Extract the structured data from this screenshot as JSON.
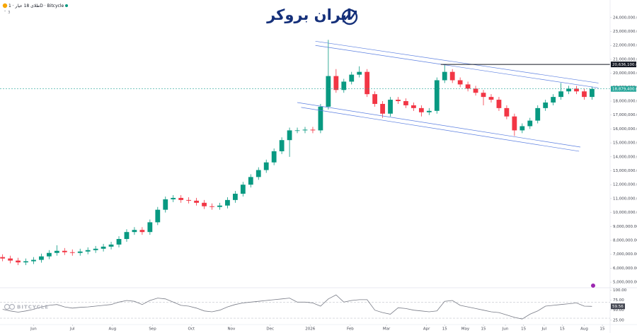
{
  "header": {
    "title": "طلای 18 عیار · 1D · Bitcycle",
    "sub": "3"
  },
  "logo": "ایران بروکر",
  "watermark": "BITCYCLE",
  "chart_data": [
    {
      "type": "candlestick",
      "up_color": "#089981",
      "down_color": "#f23645",
      "x": [
        -24,
        -18,
        -12,
        -6,
        0,
        6,
        12,
        18,
        24,
        30,
        36,
        42,
        48,
        54,
        60,
        66,
        72,
        78,
        84,
        90,
        96,
        102,
        108,
        114,
        120,
        126,
        132,
        138,
        144,
        150,
        156,
        162,
        168,
        174,
        180,
        186,
        192,
        198,
        204,
        210,
        216,
        222,
        228,
        234,
        240,
        246,
        252,
        258,
        264,
        270,
        276,
        282,
        288,
        294,
        300,
        306,
        312,
        318,
        324,
        330,
        336,
        342,
        348,
        354,
        360,
        366,
        372,
        378,
        384,
        390,
        396,
        402,
        408,
        414,
        420,
        426,
        432
      ],
      "open": [
        6800000,
        6700000,
        6550000,
        6420000,
        6500000,
        6600000,
        6850000,
        7100000,
        7250000,
        7150000,
        7100000,
        7200000,
        7300000,
        7400000,
        7550000,
        7700000,
        8100000,
        8600000,
        8750000,
        8600000,
        9300000,
        10200000,
        10950000,
        11050000,
        10900000,
        10850000,
        10700000,
        10450000,
        10400000,
        10500000,
        10900000,
        11350000,
        12000000,
        12550000,
        13050000,
        13600000,
        14400000,
        15200000,
        15900000,
        15900000,
        15950000,
        15900000,
        17600000,
        19800000,
        18800000,
        19400000,
        19900000,
        20100000,
        18500000,
        17800000,
        17100000,
        18100000,
        18000000,
        17700000,
        17500000,
        17200000,
        17300000,
        19500000,
        20100000,
        19500000,
        19200000,
        18900000,
        18600000,
        18300000,
        18100000,
        17500000,
        16900000,
        15900000,
        16200000,
        16600000,
        17500000,
        17900000,
        18300000,
        18700000,
        18900000,
        18700000,
        18300000
      ],
      "high": [
        7000000,
        6900000,
        6750000,
        6700000,
        6800000,
        7050000,
        7300000,
        7650000,
        7450000,
        7350000,
        7400000,
        7500000,
        7600000,
        7750000,
        7900000,
        8300000,
        8800000,
        8950000,
        8950000,
        9500000,
        10400000,
        11150000,
        11250000,
        11250000,
        11100000,
        11050000,
        10900000,
        10650000,
        10700000,
        11100000,
        11550000,
        12200000,
        12750000,
        13250000,
        13800000,
        14600000,
        15400000,
        16100000,
        16100000,
        16150000,
        16150000,
        17800000,
        22400000,
        20300000,
        19600000,
        20100000,
        20500000,
        20300000,
        18700000,
        18000000,
        18300000,
        18300000,
        18200000,
        17900000,
        17700000,
        17500000,
        19700000,
        20636100,
        20300000,
        19700000,
        19400000,
        19100000,
        18800000,
        18500000,
        18300000,
        17700000,
        17100000,
        16400000,
        16800000,
        17700000,
        18100000,
        18500000,
        19300000,
        19100000,
        19100000,
        18900000,
        19050000
      ],
      "low": [
        6500000,
        6350000,
        6220000,
        6220000,
        6300000,
        6400000,
        6650000,
        6900000,
        6950000,
        6900000,
        6900000,
        7000000,
        7100000,
        7200000,
        7350000,
        7500000,
        7900000,
        8400000,
        8400000,
        8400000,
        9100000,
        10000000,
        10750000,
        10700000,
        10650000,
        10500000,
        10250000,
        10200000,
        10200000,
        10300000,
        10700000,
        11150000,
        11800000,
        12350000,
        12850000,
        13400000,
        14200000,
        14000000,
        15700000,
        15700000,
        15700000,
        15700000,
        17400000,
        18600000,
        18600000,
        19200000,
        19700000,
        18300000,
        17600000,
        16800000,
        16900000,
        17800000,
        17500000,
        17300000,
        16900000,
        17000000,
        17100000,
        19300000,
        19300000,
        19000000,
        18700000,
        18400000,
        17700000,
        17900000,
        17300000,
        16700000,
        15500000,
        15700000,
        16000000,
        16400000,
        17300000,
        17700000,
        18100000,
        18500000,
        18500000,
        18100000,
        18100000
      ],
      "close": [
        6700000,
        6550000,
        6420000,
        6500000,
        6600000,
        6850000,
        7100000,
        7250000,
        7150000,
        7100000,
        7200000,
        7300000,
        7400000,
        7550000,
        7700000,
        8100000,
        8600000,
        8750000,
        8600000,
        9300000,
        10200000,
        10950000,
        11050000,
        10900000,
        10850000,
        10700000,
        10450000,
        10400000,
        10500000,
        10900000,
        11350000,
        12000000,
        12550000,
        13050000,
        13600000,
        14400000,
        15200000,
        15900000,
        15900000,
        15950000,
        15900000,
        17600000,
        19800000,
        18800000,
        19400000,
        19900000,
        20100000,
        18500000,
        17800000,
        17100000,
        18100000,
        18000000,
        17700000,
        17500000,
        17200000,
        17300000,
        19500000,
        20100000,
        19500000,
        19200000,
        18900000,
        18600000,
        18300000,
        18100000,
        17500000,
        16900000,
        15900000,
        16200000,
        16600000,
        17500000,
        17900000,
        18300000,
        18700000,
        18900000,
        18700000,
        18300000,
        18879400
      ],
      "xlim": [
        -26,
        446
      ],
      "xticks": [
        {
          "value": 0,
          "label": "Jun"
        },
        {
          "value": 30,
          "label": "Jul"
        },
        {
          "value": 61,
          "label": "Aug"
        },
        {
          "value": 92,
          "label": "Sep"
        },
        {
          "value": 122,
          "label": "Oct"
        },
        {
          "value": 153,
          "label": "Nov"
        },
        {
          "value": 183,
          "label": "Dec"
        },
        {
          "value": 214,
          "label": "2026"
        },
        {
          "value": 245,
          "label": "Feb"
        },
        {
          "value": 273,
          "label": "Mar"
        },
        {
          "value": 304,
          "label": "Apr"
        },
        {
          "value": 318,
          "label": "15"
        },
        {
          "value": 334,
          "label": "May"
        },
        {
          "value": 348,
          "label": "15"
        },
        {
          "value": 365,
          "label": "Jun"
        },
        {
          "value": 379,
          "label": "15"
        },
        {
          "value": 395,
          "label": "Jul"
        },
        {
          "value": 409,
          "label": "15"
        },
        {
          "value": 426,
          "label": "Aug"
        },
        {
          "value": 440,
          "label": "15"
        }
      ],
      "ylim": [
        4700000,
        24500000
      ],
      "yticks": [
        {
          "value": 5000000,
          "label": "5,000,000.00"
        },
        {
          "value": 6000000,
          "label": "6,000,000.00"
        },
        {
          "value": 7000000,
          "label": "7,000,000.00"
        },
        {
          "value": 8000000,
          "label": "8,000,000.00"
        },
        {
          "value": 9000000,
          "label": "9,000,000.00"
        },
        {
          "value": 10000000,
          "label": "10,000,000.00"
        },
        {
          "value": 11000000,
          "label": "11,000,000.00"
        },
        {
          "value": 12000000,
          "label": "12,000,000.00"
        },
        {
          "value": 13000000,
          "label": "13,000,000.00"
        },
        {
          "value": 14000000,
          "label": "14,000,000.00"
        },
        {
          "value": 15000000,
          "label": "15,000,000.00"
        },
        {
          "value": 16000000,
          "label": "16,000,000.00"
        },
        {
          "value": 17000000,
          "label": "17,000,000.00"
        },
        {
          "value": 18000000,
          "label": "18,000,000.00"
        },
        {
          "value": 19000000,
          "label": "19,000,000.00"
        },
        {
          "value": 20000000,
          "label": "20,000,000.00"
        },
        {
          "value": 21000000,
          "label": "21,000,000.00"
        },
        {
          "value": 22000000,
          "label": "22,000,000.00"
        },
        {
          "value": 23000000,
          "label": "23,000,000.00"
        },
        {
          "value": 24000000,
          "label": "24,000,000.00"
        }
      ],
      "trendlines": [
        {
          "x": [
            218,
            437
          ],
          "y": [
            22300000,
            19300000
          ],
          "color": "#5b7fe0"
        },
        {
          "x": [
            218,
            437
          ],
          "y": [
            22000000,
            18950000
          ],
          "color": "#5b7fe0"
        },
        {
          "x": [
            204,
            423
          ],
          "y": [
            17900000,
            14700000
          ],
          "color": "#5b7fe0"
        },
        {
          "x": [
            207,
            422
          ],
          "y": [
            17550000,
            14400000
          ],
          "color": "#5b7fe0"
        }
      ],
      "price_lines": [
        {
          "value": 20636100,
          "label": "20,636,100.00",
          "color": "#131722",
          "x": 315
        },
        {
          "value": 18879400,
          "label": "18,879,400.00",
          "color": "#26a69a"
        }
      ]
    },
    {
      "type": "line",
      "color": "#787b86",
      "x": [
        -24,
        -18,
        -12,
        -6,
        0,
        6,
        12,
        18,
        24,
        30,
        36,
        42,
        48,
        54,
        60,
        66,
        72,
        78,
        84,
        90,
        96,
        102,
        108,
        114,
        120,
        126,
        132,
        138,
        144,
        150,
        156,
        162,
        168,
        174,
        180,
        186,
        192,
        198,
        204,
        210,
        216,
        222,
        228,
        234,
        240,
        246,
        252,
        258,
        264,
        270,
        276,
        282,
        288,
        294,
        300,
        306,
        312,
        318,
        324,
        330,
        336,
        342,
        348,
        354,
        360,
        366,
        372,
        378,
        384,
        390,
        396,
        402,
        408,
        414,
        420,
        426,
        432
      ],
      "values": [
        52,
        48,
        45,
        48,
        52,
        58,
        62,
        64,
        58,
        55,
        57,
        58,
        60,
        62,
        64,
        70,
        74,
        72,
        64,
        74,
        80,
        78,
        70,
        62,
        60,
        55,
        48,
        46,
        50,
        58,
        64,
        68,
        70,
        72,
        74,
        76,
        78,
        80,
        70,
        70,
        68,
        60,
        78,
        88,
        70,
        74,
        76,
        76,
        50,
        44,
        40,
        56,
        54,
        50,
        48,
        46,
        48,
        72,
        74,
        62,
        58,
        54,
        50,
        46,
        44,
        38,
        32,
        28,
        40,
        48,
        60,
        62,
        64,
        66,
        68,
        60,
        59.56
      ],
      "xlim": [
        -26,
        446
      ],
      "ylim": [
        16,
        104
      ],
      "yticks": [
        {
          "value": 100,
          "label": "100.00"
        },
        {
          "value": 75,
          "label": "75.00"
        },
        {
          "value": 50,
          "label": "50.00"
        },
        {
          "value": 25,
          "label": "25.00"
        }
      ],
      "levels": [
        70,
        30
      ]
    }
  ]
}
